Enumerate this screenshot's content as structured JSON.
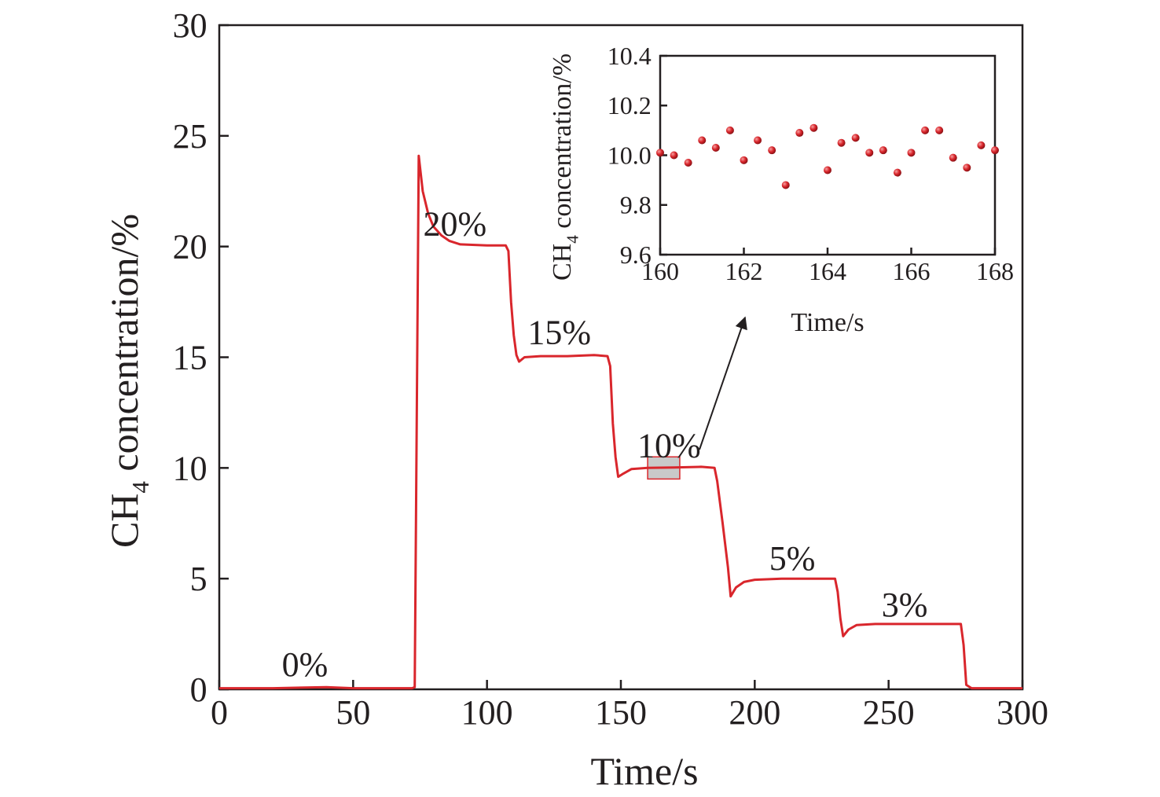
{
  "chart_data": [
    {
      "type": "line",
      "xlabel": "Time/s",
      "ylabel_main": "CH",
      "ylabel_sub": "4",
      "ylabel_rest": " concentration/%",
      "xlim": [
        0,
        300
      ],
      "ylim": [
        0,
        30
      ],
      "xticks": [
        0,
        50,
        100,
        150,
        200,
        250,
        300
      ],
      "yticks": [
        0,
        5,
        10,
        15,
        20,
        25,
        30
      ],
      "xtick_labels": [
        "0",
        "50",
        "100",
        "150",
        "200",
        "250",
        "300"
      ],
      "ytick_labels": [
        "0",
        "5",
        "10",
        "15",
        "20",
        "25",
        "30"
      ],
      "series": [
        {
          "color": "#d9262c",
          "points": [
            [
              0,
              0.05
            ],
            [
              20,
              0.05
            ],
            [
              40,
              0.1
            ],
            [
              50,
              0.05
            ],
            [
              72,
              0.05
            ],
            [
              73,
              0.1
            ],
            [
              74.5,
              24.1
            ],
            [
              76,
              22.5
            ],
            [
              78,
              21.5
            ],
            [
              80,
              20.9
            ],
            [
              83,
              20.5
            ],
            [
              86,
              20.25
            ],
            [
              90,
              20.1
            ],
            [
              100,
              20.05
            ],
            [
              107,
              20.05
            ],
            [
              108,
              19.8
            ],
            [
              109,
              17.5
            ],
            [
              110,
              16
            ],
            [
              111,
              15.1
            ],
            [
              112,
              14.8
            ],
            [
              114,
              15.0
            ],
            [
              120,
              15.05
            ],
            [
              130,
              15.05
            ],
            [
              140,
              15.1
            ],
            [
              145,
              15.05
            ],
            [
              146,
              14.6
            ],
            [
              147,
              12
            ],
            [
              148,
              10.5
            ],
            [
              149,
              9.6
            ],
            [
              151,
              9.75
            ],
            [
              154,
              9.95
            ],
            [
              160,
              10.0
            ],
            [
              170,
              10.02
            ],
            [
              180,
              10.05
            ],
            [
              185,
              10.0
            ],
            [
              186,
              9.4
            ],
            [
              188,
              7.5
            ],
            [
              190,
              5.5
            ],
            [
              191,
              4.2
            ],
            [
              193,
              4.6
            ],
            [
              196,
              4.85
            ],
            [
              200,
              4.95
            ],
            [
              210,
              5.0
            ],
            [
              220,
              5.0
            ],
            [
              230,
              5.0
            ],
            [
              231,
              4.4
            ],
            [
              232,
              3.2
            ],
            [
              233,
              2.4
            ],
            [
              235,
              2.7
            ],
            [
              238,
              2.9
            ],
            [
              245,
              2.95
            ],
            [
              260,
              2.95
            ],
            [
              277,
              2.95
            ],
            [
              278,
              2.0
            ],
            [
              279,
              0.2
            ],
            [
              281,
              0.05
            ],
            [
              300,
              0.05
            ]
          ]
        }
      ],
      "annotations": [
        {
          "text": "0%",
          "x": 32,
          "y": 0.6
        },
        {
          "text": "20%",
          "x": 88,
          "y": 20.5
        },
        {
          "text": "15%",
          "x": 127,
          "y": 15.6
        },
        {
          "text": "10%",
          "x": 168,
          "y": 10.5
        },
        {
          "text": "5%",
          "x": 214,
          "y": 5.4
        },
        {
          "text": "3%",
          "x": 256,
          "y": 3.3
        }
      ],
      "highlight": {
        "x0": 160,
        "x1": 172,
        "y0": 9.5,
        "y1": 10.5,
        "fill": "#c9c9c9",
        "stroke": "#d9262c"
      }
    },
    {
      "type": "scatter",
      "xlabel": "Time/s",
      "ylabel_main": "CH",
      "ylabel_sub": "4",
      "ylabel_rest": " concentration/%",
      "xlim": [
        160,
        168
      ],
      "ylim": [
        9.6,
        10.4
      ],
      "xticks": [
        160,
        162,
        164,
        166,
        168
      ],
      "yticks": [
        9.6,
        9.8,
        10.0,
        10.2,
        10.4
      ],
      "xtick_labels": [
        "160",
        "162",
        "164",
        "166",
        "168"
      ],
      "ytick_labels": [
        "9.6",
        "9.8",
        "10.0",
        "10.2",
        "10.4"
      ],
      "series": [
        {
          "color": "#d9262c",
          "points": [
            [
              160.0,
              10.01
            ],
            [
              160.33,
              10.0
            ],
            [
              160.67,
              9.97
            ],
            [
              161.0,
              10.06
            ],
            [
              161.33,
              10.03
            ],
            [
              161.67,
              10.1
            ],
            [
              162.0,
              9.98
            ],
            [
              162.33,
              10.06
            ],
            [
              162.67,
              10.02
            ],
            [
              163.0,
              9.88
            ],
            [
              163.33,
              10.09
            ],
            [
              163.67,
              10.11
            ],
            [
              164.0,
              9.94
            ],
            [
              164.33,
              10.05
            ],
            [
              164.67,
              10.07
            ],
            [
              165.0,
              10.01
            ],
            [
              165.33,
              10.02
            ],
            [
              165.67,
              9.93
            ],
            [
              166.0,
              10.01
            ],
            [
              166.33,
              10.1
            ],
            [
              166.67,
              10.1
            ],
            [
              167.0,
              9.99
            ],
            [
              167.33,
              9.95
            ],
            [
              167.67,
              10.04
            ],
            [
              168.0,
              10.02
            ]
          ]
        }
      ]
    }
  ]
}
